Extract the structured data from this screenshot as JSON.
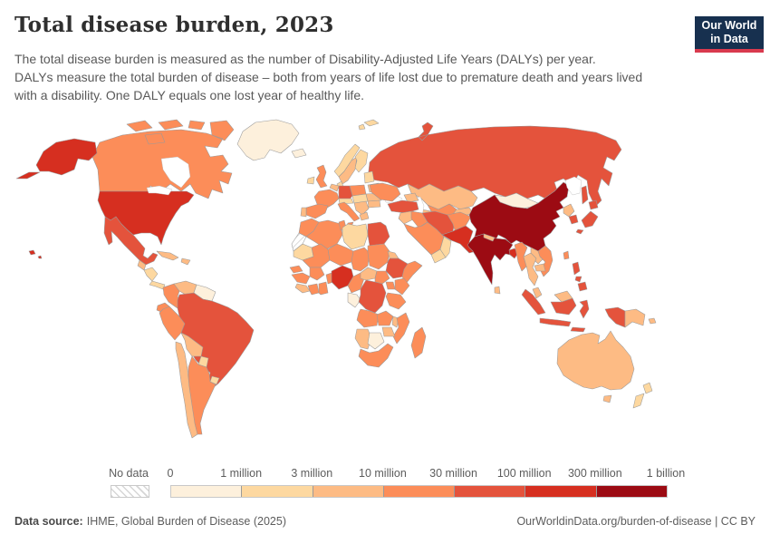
{
  "header": {
    "title": "Total disease burden, 2023",
    "subtitle_lines": [
      "The total disease burden is measured as the number of Disability-Adjusted Life Years (DALYs) per year.",
      "DALYs measure the total burden of disease – both from years of life lost due to premature death and years lived",
      "with a disability. One DALY equals one lost year of healthy life."
    ],
    "logo": {
      "line1": "Our World",
      "line2": "in Data",
      "bg": "#17304f",
      "stripe": "#d93a4e"
    }
  },
  "legend": {
    "no_data_label": "No data",
    "labels": [
      "0",
      "1 million",
      "3 million",
      "10 million",
      "30 million",
      "100 million",
      "300 million",
      "1 billion"
    ],
    "colors": [
      "#fdf0dc",
      "#fdd8a0",
      "#fdbb84",
      "#fc8d59",
      "#e4533c",
      "#d62f20",
      "#9c0b13"
    ]
  },
  "footer": {
    "source_label": "Data source:",
    "source_value": "IHME, Global Burden of Disease (2025)",
    "right_text": "OurWorldinData.org/burden-of-disease | CC BY"
  },
  "chart_data": {
    "type": "choropleth_map",
    "title": "Total disease burden, 2023",
    "unit": "Disability-Adjusted Life Years (DALYs) per year",
    "scale": "log-binned",
    "bin_edges": [
      "0",
      "1 million",
      "3 million",
      "10 million",
      "30 million",
      "100 million",
      "300 million",
      "1 billion"
    ],
    "bin_colors": [
      "#fdf0dc",
      "#fdd8a0",
      "#fdbb84",
      "#fc8d59",
      "#e4533c",
      "#d62f20",
      "#9c0b13"
    ],
    "no_data": "hatched",
    "countries": {
      "greenland": 0,
      "canada": 3,
      "usa": 5,
      "mexico": 4,
      "guatemala": 2,
      "honduras_nicaragua": 1,
      "costa_rica_panama": 1,
      "cuba": 2,
      "hispaniola": 2,
      "colombia": 3,
      "venezuela": 2,
      "guyanas": 0,
      "ecuador": 3,
      "peru": 3,
      "brazil": 4,
      "bolivia": 2,
      "paraguay": 1,
      "uruguay": 1,
      "chile": 2,
      "argentina": 3,
      "iceland": 0,
      "ireland": 1,
      "uk": 3,
      "norway": 1,
      "sweden": 2,
      "finland": 1,
      "denmark": 1,
      "baltics": 1,
      "belarus": 2,
      "poland": 3,
      "germany": 4,
      "benelux": 2,
      "france": 3,
      "spain": 3,
      "portugal": 2,
      "alps_austria": 1,
      "czech_hungary": 1,
      "italy": 3,
      "balkans": 2,
      "greece": 2,
      "romania": 2,
      "bulgaria": 2,
      "ukraine": 3,
      "svalbard": 1,
      "russia": 4,
      "kazakhstan": 2,
      "uzbekistan": 3,
      "turkmenistan": 2,
      "kyrgyz_tajik": 2,
      "caucasus": 2,
      "turkey": 4,
      "syria_levant": 2,
      "iraq": 3,
      "saudi_arabia": 3,
      "yemen": 1,
      "oman": 1,
      "iran": 4,
      "afghanistan": 3,
      "pakistan": 5,
      "india": 6,
      "nepal": 2,
      "sri_lanka": 2,
      "bangladesh": 5,
      "china": 6,
      "mongolia": 0,
      "myanmar": 3,
      "thailand": 2,
      "laos": 2,
      "cambodia": 2,
      "vietnam": 3,
      "malaysia": 2,
      "indonesia": 4,
      "philippines": 4,
      "taiwan": 3,
      "north_korea": 2,
      "south_korea": 4,
      "japan": 4,
      "papua_new_guinea": 2,
      "australia": 2,
      "new_zealand": 1,
      "morocco": 3,
      "western_sahara": -1,
      "algeria": 3,
      "tunisia": 3,
      "libya": 1,
      "egypt": 4,
      "mauritania": 1,
      "mali": 3,
      "niger": 3,
      "chad": 3,
      "sudan": 3,
      "eritrea": 2,
      "ethiopia": 4,
      "somalia": 3,
      "senegal": 3,
      "guinea": 3,
      "sierra_liberia": 2,
      "ivory_coast": 3,
      "ghana": 3,
      "burkina_faso": 3,
      "benin_togo": 3,
      "nigeria": 5,
      "cameroon": 3,
      "central_african_republic": 2,
      "south_sudan": 3,
      "gabon_congo": 0,
      "dr_congo": 4,
      "uganda": 3,
      "kenya": 3,
      "tanzania": 3,
      "angola": 3,
      "zambia": 3,
      "malawi": 2,
      "mozambique": 3,
      "zimbabwe": 2,
      "namibia": 2,
      "botswana": 0,
      "south_africa": 3,
      "madagascar": 3
    }
  }
}
